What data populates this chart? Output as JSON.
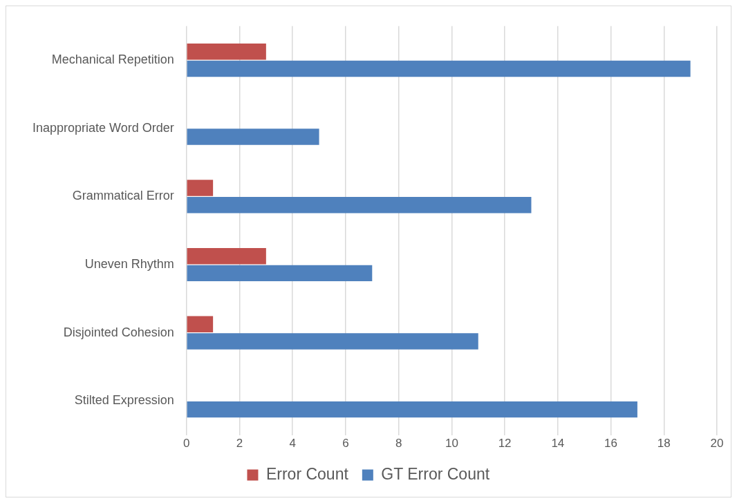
{
  "chart_data": {
    "type": "bar",
    "orientation": "horizontal",
    "categories": [
      "Mechanical Repetition",
      "Inappropriate Word Order",
      "Grammatical Error",
      "Uneven Rhythm",
      "Disjointed Cohesion",
      "Stilted Expression"
    ],
    "series": [
      {
        "name": "Error Count",
        "color": "#c0504d",
        "values": [
          3,
          0,
          1,
          3,
          1,
          0
        ]
      },
      {
        "name": "GT Error Count",
        "color": "#4f81bd",
        "values": [
          19,
          5,
          13,
          7,
          11,
          17
        ]
      }
    ],
    "xlim": [
      0,
      20
    ],
    "xticks": [
      0,
      2,
      4,
      6,
      8,
      10,
      12,
      14,
      16,
      18,
      20
    ],
    "grid": "x",
    "legend": "bottom"
  }
}
